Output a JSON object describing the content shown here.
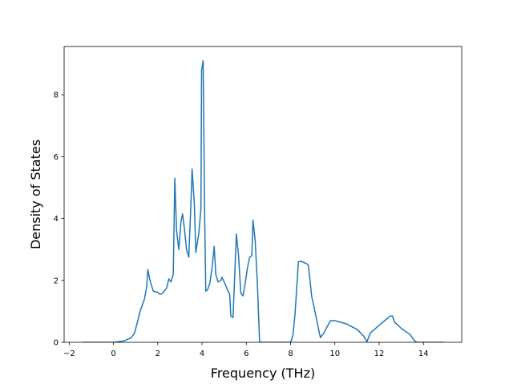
{
  "chart_data": {
    "type": "line",
    "xlabel": "Frequency (THz)",
    "ylabel": "Density of States",
    "xlim": [
      -2.23,
      15.73
    ],
    "ylim": [
      0,
      9.56
    ],
    "xticks": [
      {
        "value": -2,
        "label": "−2"
      },
      0,
      2,
      4,
      6,
      8,
      10,
      12,
      14
    ],
    "yticks": [
      0,
      2,
      4,
      6,
      8
    ],
    "series": [
      {
        "color": "#1f77b4",
        "x": [
          -1.4,
          0,
          0.5,
          0.8,
          0.95,
          1.1,
          1.2,
          1.4,
          1.5,
          1.55,
          1.65,
          1.8,
          2.0,
          2.1,
          2.2,
          2.4,
          2.5,
          2.6,
          2.7,
          2.77,
          2.85,
          2.95,
          3.05,
          3.12,
          3.2,
          3.3,
          3.4,
          3.5,
          3.55,
          3.65,
          3.72,
          3.85,
          3.95,
          3.98,
          4.05,
          4.12,
          4.17,
          4.25,
          4.35,
          4.45,
          4.55,
          4.62,
          4.72,
          4.85,
          4.9,
          5.0,
          5.15,
          5.25,
          5.3,
          5.4,
          5.5,
          5.55,
          5.65,
          5.75,
          5.85,
          5.95,
          6.05,
          6.15,
          6.25,
          6.3,
          6.4,
          6.5,
          6.6,
          8.0,
          8.1,
          8.2,
          8.3,
          8.35,
          8.45,
          8.6,
          8.7,
          8.8,
          8.85,
          8.95,
          9.1,
          9.3,
          9.35,
          9.5,
          9.8,
          10.0,
          10.5,
          11.0,
          11.3,
          11.45,
          11.6,
          12.0,
          12.5,
          12.6,
          12.7,
          13.0,
          13.4,
          13.6,
          13.7,
          14.9
        ],
        "values": [
          0,
          0,
          0.05,
          0.15,
          0.3,
          0.7,
          1.0,
          1.4,
          1.8,
          2.35,
          2.0,
          1.65,
          1.62,
          1.55,
          1.57,
          1.75,
          2.05,
          1.95,
          2.2,
          5.3,
          3.6,
          3.0,
          3.9,
          4.15,
          3.7,
          3.0,
          2.75,
          4.5,
          5.6,
          4.5,
          2.9,
          3.5,
          4.3,
          8.8,
          9.1,
          4.0,
          1.65,
          1.7,
          1.9,
          2.4,
          3.1,
          2.2,
          1.95,
          2.0,
          2.1,
          1.95,
          1.7,
          1.55,
          0.85,
          0.8,
          2.6,
          3.5,
          2.8,
          1.6,
          1.5,
          1.9,
          2.4,
          2.75,
          2.8,
          3.95,
          3.3,
          1.9,
          0,
          0,
          0.2,
          0.9,
          2.0,
          2.6,
          2.62,
          2.58,
          2.55,
          2.5,
          2.2,
          1.5,
          1.0,
          0.3,
          0.15,
          0.3,
          0.7,
          0.7,
          0.6,
          0.42,
          0.2,
          0.02,
          0.3,
          0.55,
          0.85,
          0.85,
          0.65,
          0.45,
          0.25,
          0.05,
          0,
          0
        ]
      }
    ]
  }
}
